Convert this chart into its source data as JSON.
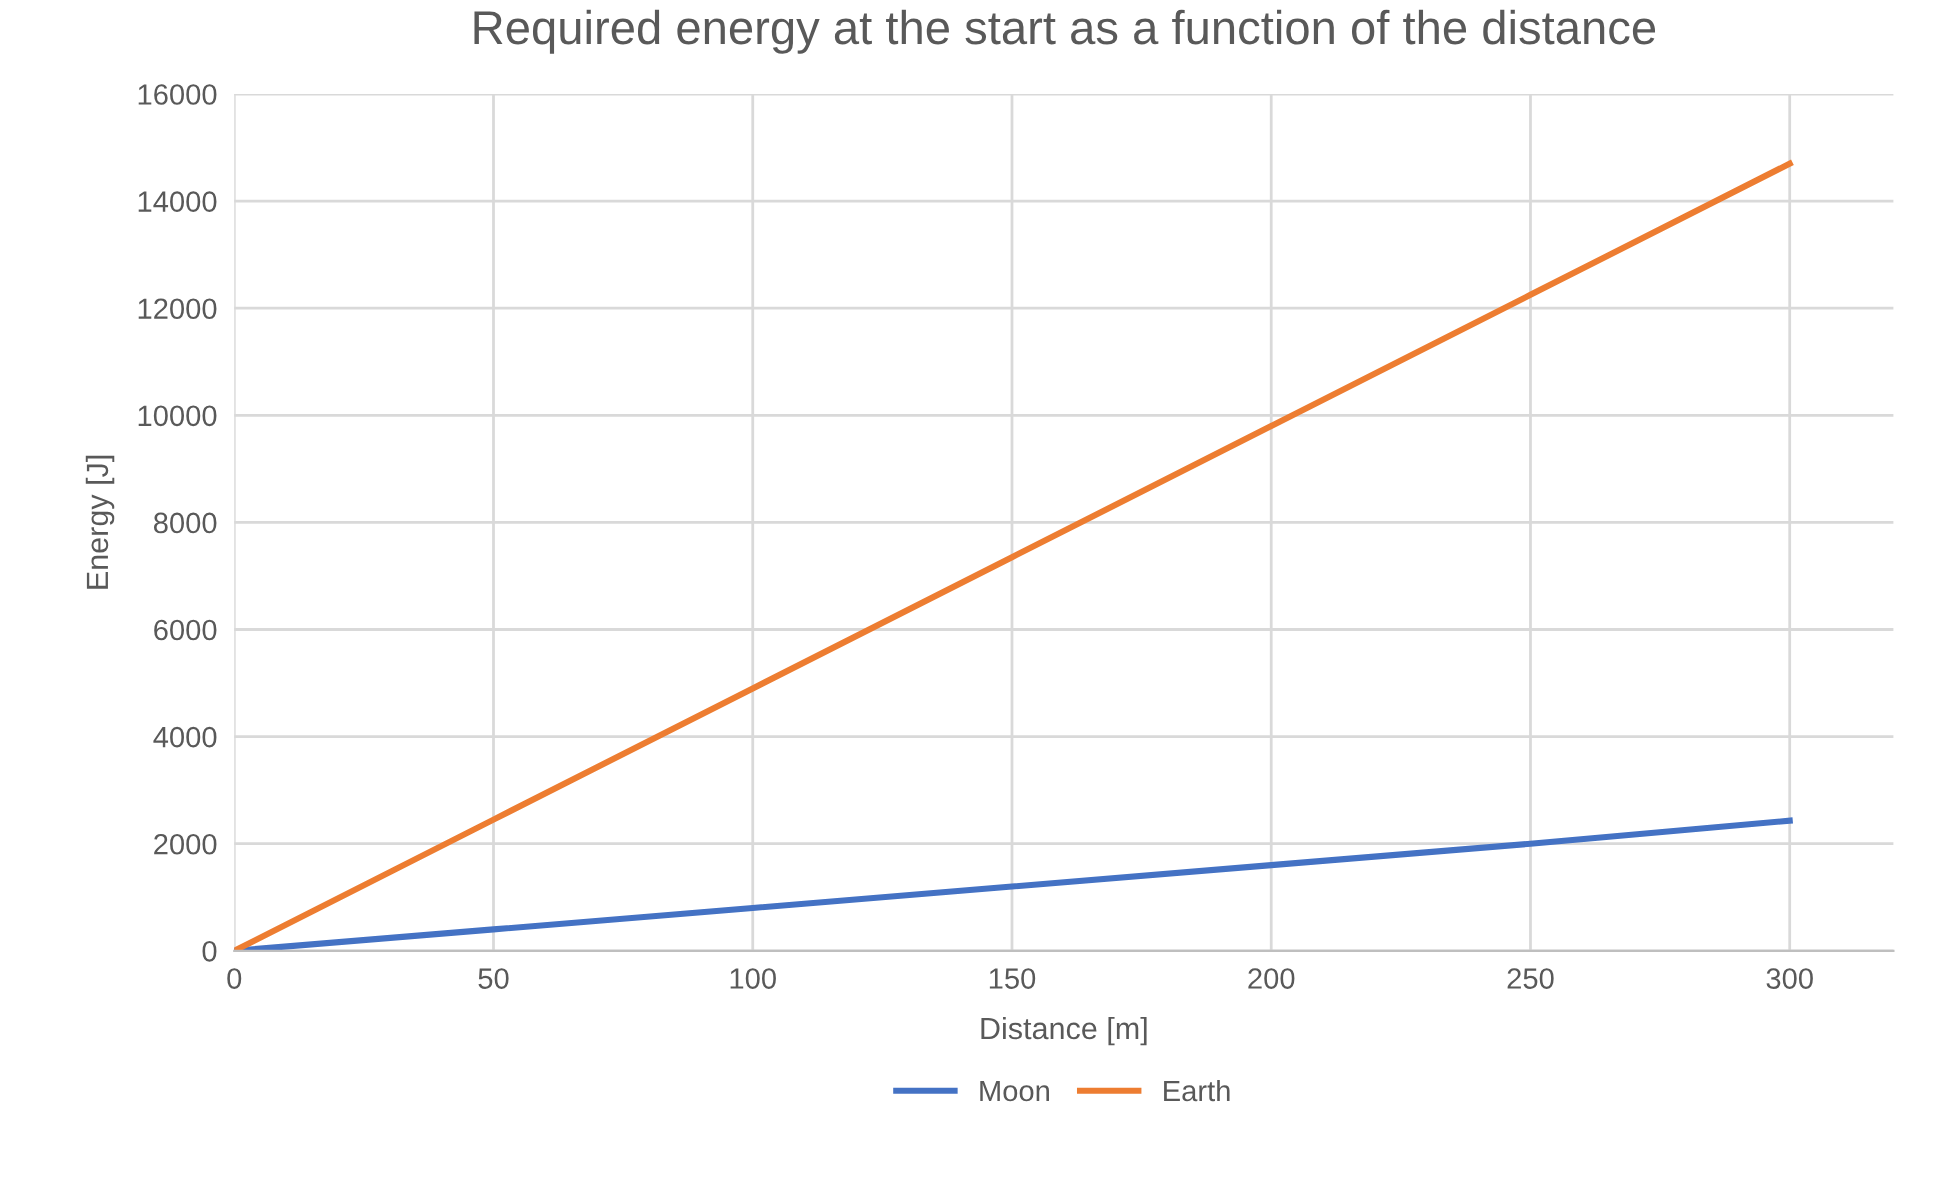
{
  "chart_data": {
    "type": "line",
    "title": "Required energy at the start as a function of the distance",
    "xlabel": "Distance [m]",
    "ylabel": "Energy [J]",
    "x": [
      0,
      50,
      100,
      150,
      200,
      250,
      300
    ],
    "series": [
      {
        "name": "Moon",
        "color": "#4472c4",
        "values": [
          0,
          400,
          800,
          1200,
          1600,
          2000,
          2430
        ]
      },
      {
        "name": "Earth",
        "color": "#ed7d31",
        "values": [
          0,
          2450,
          4900,
          7350,
          9800,
          12250,
          14700
        ]
      }
    ],
    "xlim": [
      0,
      320
    ],
    "xticks": [
      0,
      50,
      100,
      150,
      200,
      250,
      300
    ],
    "ylim": [
      0,
      16000
    ],
    "yticks": [
      0,
      2000,
      4000,
      6000,
      8000,
      10000,
      12000,
      14000,
      16000
    ],
    "grid": true,
    "legend": "bottom",
    "marker": "none",
    "line_style": "solid"
  }
}
